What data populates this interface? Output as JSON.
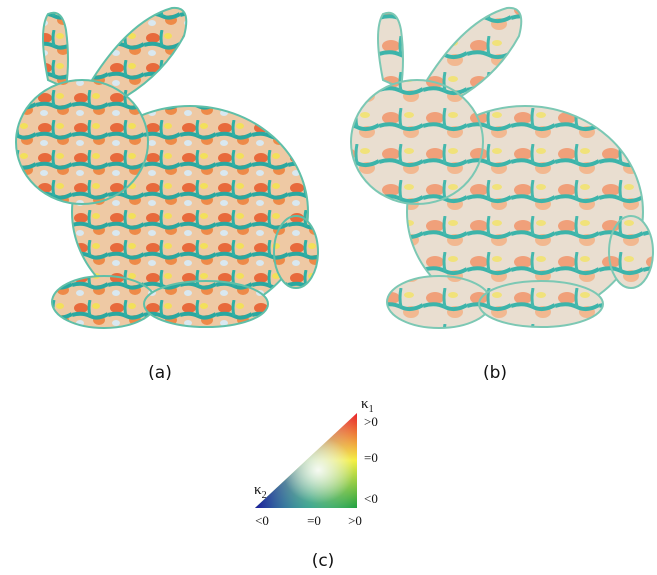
{
  "panels": [
    {
      "label": "(a)"
    },
    {
      "label": "(b)"
    }
  ],
  "colormap": {
    "label": "(c)",
    "k1": {
      "symbol": "κ",
      "subscript": "1"
    },
    "k1_ticks": [
      ">0",
      "=0",
      "<0"
    ],
    "k2": {
      "symbol": "κ",
      "subscript": "2"
    },
    "k2_ticks": [
      "<0",
      "=0",
      ">0"
    ]
  }
}
